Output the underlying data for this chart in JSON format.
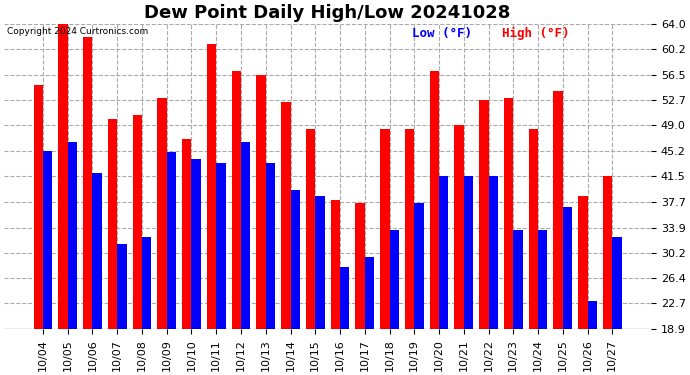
{
  "title": "Dew Point Daily High/Low 20241028",
  "copyright": "Copyright 2024 Curtronics.com",
  "legend_low": "Low (°F)",
  "legend_high": "High (°F)",
  "dates": [
    "10/04",
    "10/05",
    "10/06",
    "10/07",
    "10/08",
    "10/09",
    "10/10",
    "10/11",
    "10/12",
    "10/13",
    "10/14",
    "10/15",
    "10/16",
    "10/17",
    "10/18",
    "10/19",
    "10/20",
    "10/21",
    "10/22",
    "10/23",
    "10/24",
    "10/25",
    "10/26",
    "10/27"
  ],
  "high": [
    55.0,
    64.0,
    62.0,
    50.0,
    50.5,
    53.0,
    47.0,
    61.0,
    57.0,
    56.5,
    52.5,
    48.5,
    38.0,
    37.5,
    48.5,
    48.5,
    57.0,
    49.0,
    52.7,
    53.0,
    48.5,
    54.0,
    38.5,
    41.5
  ],
  "low": [
    45.2,
    46.5,
    42.0,
    31.5,
    32.5,
    45.0,
    44.0,
    43.5,
    46.5,
    43.5,
    39.5,
    38.5,
    28.0,
    29.5,
    33.5,
    37.5,
    41.5,
    41.5,
    41.5,
    33.5,
    33.5,
    37.0,
    23.0,
    32.5
  ],
  "ylim_min": 18.9,
  "ylim_max": 64.0,
  "yticks": [
    18.9,
    22.7,
    26.4,
    30.2,
    33.9,
    37.7,
    41.5,
    45.2,
    49.0,
    52.7,
    56.5,
    60.2,
    64.0
  ],
  "bar_color_high": "#ff0000",
  "bar_color_low": "#0000ff",
  "bg_color": "#ffffff",
  "grid_color": "#aaaaaa",
  "title_fontsize": 13,
  "tick_fontsize": 8,
  "legend_fontsize": 9
}
